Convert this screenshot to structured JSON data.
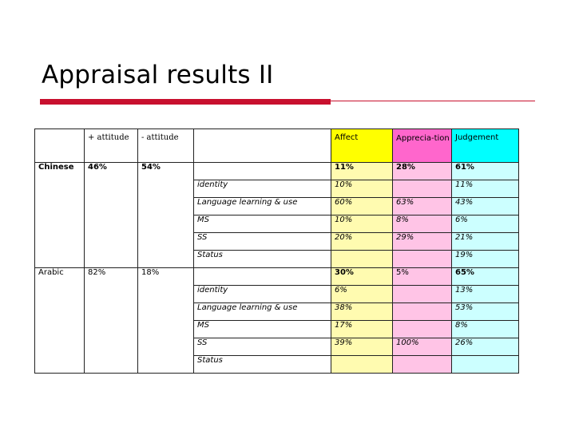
{
  "slide": {
    "title": "Appraisal results II"
  },
  "header": {
    "pos_attitude": "+ attitude",
    "neg_attitude": "- attitude",
    "affect": "Affect",
    "appreciation": "Apprecia-tion",
    "judgement": "Judgement"
  },
  "groups": [
    {
      "name": "Chinese",
      "pos": "46%",
      "neg": "54%",
      "affect": "11%",
      "appreciation": "28%",
      "judgement": "61%",
      "rows": [
        {
          "label": "identity",
          "affect": "10%",
          "appreciation": "",
          "judgement": "11%"
        },
        {
          "label": "Language learning & use",
          "affect": "60%",
          "appreciation": "63%",
          "judgement": "43%"
        },
        {
          "label": "MS",
          "affect": "10%",
          "appreciation": "8%",
          "judgement": "6%"
        },
        {
          "label": "SS",
          "affect": "20%",
          "appreciation": "29%",
          "judgement": "21%"
        },
        {
          "label": "Status",
          "affect": "",
          "appreciation": "",
          "judgement": "19%"
        }
      ]
    },
    {
      "name": "Arabic",
      "pos": "82%",
      "neg": "18%",
      "affect": "30%",
      "appreciation": "5%",
      "judgement": "65%",
      "rows": [
        {
          "label": "identity",
          "affect": "6%",
          "appreciation": "",
          "judgement": "13%"
        },
        {
          "label": "Language learning & use",
          "affect": "38%",
          "appreciation": "",
          "judgement": "53%"
        },
        {
          "label": "MS",
          "affect": "17%",
          "appreciation": "",
          "judgement": "8%"
        },
        {
          "label": "SS",
          "affect": "39%",
          "appreciation": "100%",
          "judgement": "26%"
        },
        {
          "label": "Status",
          "affect": "",
          "appreciation": "",
          "judgement": ""
        }
      ]
    }
  ],
  "colors": {
    "accent_rule": "#c8102e",
    "affect_header": "#ffff00",
    "affect_cell": "#fffbb0",
    "appreciation_header": "#ff66cc",
    "appreciation_cell": "#ffc4e6",
    "judgement_header": "#00ffff",
    "judgement_cell": "#ccffff"
  }
}
